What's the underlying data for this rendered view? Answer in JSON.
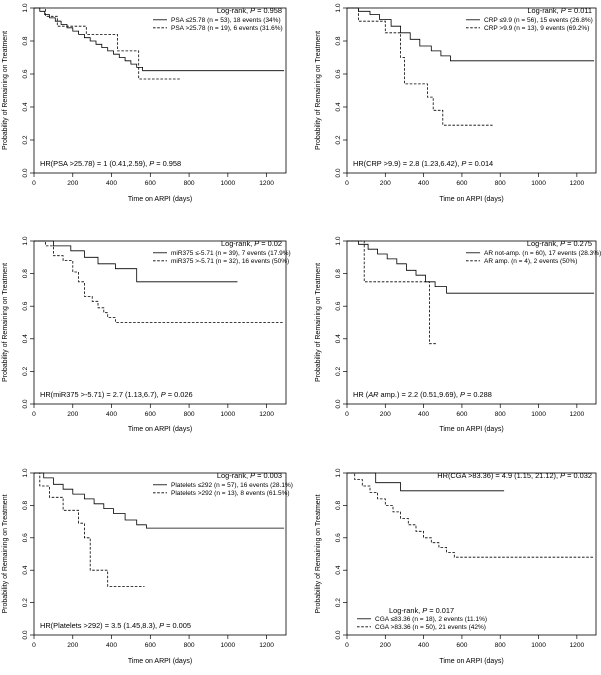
{
  "colors": {
    "line": "#000000",
    "background": "#ffffff"
  },
  "chart_data": [
    {
      "type": "line",
      "panel": "psa",
      "xlabel": "Time on ARPI (days)",
      "ylabel": "Probability of Remaining on Treatment",
      "xlim": [
        0,
        1300
      ],
      "ylim": [
        0,
        1
      ],
      "xticks": [
        "0",
        "200",
        "400",
        "600",
        "800",
        "1000",
        "1200"
      ],
      "yticks": [
        "0.0",
        "0.2",
        "0.4",
        "0.6",
        "0.8",
        "1.0"
      ],
      "top_text": {
        "label": "Log-rank, ",
        "p": "P",
        "value": " = 0.958"
      },
      "legend_position": "top-right",
      "bottom_text": {
        "label": "HR(PSA >25.78) = 1 (0.41,2.59), ",
        "p": "P",
        "value": " = 0.958"
      },
      "series": [
        {
          "name": "PSA ≤25.78 (n = 53), 18 events (34%)",
          "style": "solid",
          "x": [
            0,
            30,
            55,
            80,
            110,
            140,
            170,
            200,
            230,
            260,
            290,
            320,
            350,
            380,
            410,
            440,
            470,
            500,
            530,
            560,
            1290
          ],
          "y": [
            1.0,
            0.98,
            0.96,
            0.94,
            0.92,
            0.9,
            0.88,
            0.86,
            0.84,
            0.82,
            0.8,
            0.78,
            0.76,
            0.74,
            0.72,
            0.7,
            0.68,
            0.66,
            0.64,
            0.62,
            0.62
          ]
        },
        {
          "name": "PSA >25.78 (n = 19), 6 events (31.6%)",
          "style": "dashed",
          "x": [
            0,
            60,
            120,
            270,
            430,
            540,
            760
          ],
          "y": [
            1.0,
            0.95,
            0.89,
            0.84,
            0.74,
            0.57,
            0.57
          ]
        }
      ]
    },
    {
      "type": "line",
      "panel": "crp",
      "xlabel": "Time on ARPI (days)",
      "ylabel": "Probability of Remaining on Treatment",
      "xlim": [
        0,
        1300
      ],
      "ylim": [
        0,
        1
      ],
      "xticks": [
        "0",
        "200",
        "400",
        "600",
        "800",
        "1000",
        "1200"
      ],
      "yticks": [
        "0.0",
        "0.2",
        "0.4",
        "0.6",
        "0.8",
        "1.0"
      ],
      "top_text": {
        "label": "Log-rank, ",
        "p": "P",
        "value": " = 0.011"
      },
      "legend_position": "top-right",
      "bottom_text": {
        "label": "HR(CRP >9.9) = 2.8 (1.23,6.42), ",
        "p": "P",
        "value": " = 0.014"
      },
      "series": [
        {
          "name": "CRP ≤9.9 (n = 56), 15 events (26.8%)",
          "style": "solid",
          "x": [
            0,
            60,
            120,
            170,
            230,
            280,
            330,
            380,
            440,
            490,
            540,
            1290
          ],
          "y": [
            1.0,
            0.98,
            0.96,
            0.93,
            0.89,
            0.85,
            0.81,
            0.77,
            0.74,
            0.71,
            0.68,
            0.68
          ]
        },
        {
          "name": "CRP >9.9 (n = 13), 9 events (69.2%)",
          "style": "dashed",
          "x": [
            0,
            60,
            200,
            280,
            300,
            420,
            450,
            500,
            760
          ],
          "y": [
            1.0,
            0.92,
            0.85,
            0.7,
            0.54,
            0.46,
            0.38,
            0.29,
            0.29
          ]
        }
      ]
    },
    {
      "type": "line",
      "panel": "mir375",
      "xlabel": "Time on ARPI (days)",
      "ylabel": "Probability of Remaining on Treatment",
      "xlim": [
        0,
        1300
      ],
      "ylim": [
        0,
        1
      ],
      "xticks": [
        "0",
        "200",
        "400",
        "600",
        "800",
        "1000",
        "1200"
      ],
      "yticks": [
        "0.0",
        "0.2",
        "0.4",
        "0.6",
        "0.8",
        "1.0"
      ],
      "top_text": {
        "label": "Log-rank, ",
        "p": "P",
        "value": " = 0.02"
      },
      "legend_position": "top-right",
      "bottom_text": {
        "label": "HR(miR375 >-5.71) = 2.7 (1.13,6.7), ",
        "p": "P",
        "value": " = 0.026"
      },
      "series": [
        {
          "name": "miR375 ≤-5.71 (n = 39), 7 events (17.9%)",
          "style": "solid",
          "x": [
            0,
            100,
            190,
            260,
            330,
            420,
            530,
            1050
          ],
          "y": [
            1.0,
            0.97,
            0.94,
            0.9,
            0.86,
            0.83,
            0.75,
            0.75
          ]
        },
        {
          "name": "miR375 >-5.71 (n = 32), 16 events (50%)",
          "style": "dashed",
          "x": [
            0,
            60,
            100,
            150,
            200,
            230,
            260,
            300,
            330,
            360,
            380,
            420,
            560,
            1290
          ],
          "y": [
            1.0,
            0.97,
            0.91,
            0.88,
            0.81,
            0.75,
            0.66,
            0.63,
            0.59,
            0.56,
            0.53,
            0.5,
            0.5,
            0.5
          ]
        }
      ]
    },
    {
      "type": "line",
      "panel": "ar",
      "xlabel": "Time on ARPI (days)",
      "ylabel": "Probability of Remaining on Treatment",
      "xlim": [
        0,
        1300
      ],
      "ylim": [
        0,
        1
      ],
      "xticks": [
        "0",
        "200",
        "400",
        "600",
        "800",
        "1000",
        "1200"
      ],
      "yticks": [
        "0.0",
        "0.2",
        "0.4",
        "0.6",
        "0.8",
        "1.0"
      ],
      "top_text": {
        "label": "Log-rank, ",
        "p": "P",
        "value": " = 0.275"
      },
      "legend_position": "top-right",
      "bottom_text": {
        "prefix": "HR (",
        "gene": "AR",
        "label": " amp.) = 2.2 (0.51,9.69), ",
        "p": "P",
        "value": " = 0.288"
      },
      "series": [
        {
          "name": "AR not-amp. (n = 60), 17 events (28.3%)",
          "style": "solid",
          "x": [
            0,
            60,
            110,
            160,
            210,
            260,
            310,
            360,
            410,
            460,
            520,
            1290
          ],
          "y": [
            1.0,
            0.98,
            0.95,
            0.92,
            0.89,
            0.86,
            0.82,
            0.79,
            0.75,
            0.72,
            0.68,
            0.68
          ]
        },
        {
          "name": "AR amp. (n = 4), 2 events (50%)",
          "style": "dashed",
          "x": [
            0,
            80,
            90,
            420,
            430,
            470
          ],
          "y": [
            1.0,
            1.0,
            0.75,
            0.75,
            0.37,
            0.37
          ]
        }
      ]
    },
    {
      "type": "line",
      "panel": "platelets",
      "xlabel": "Time on ARPI (days)",
      "ylabel": "Probability of Remaining on Treatment",
      "xlim": [
        0,
        1300
      ],
      "ylim": [
        0,
        1
      ],
      "xticks": [
        "0",
        "200",
        "400",
        "600",
        "800",
        "1000",
        "1200"
      ],
      "yticks": [
        "0.0",
        "0.2",
        "0.4",
        "0.6",
        "0.8",
        "1.0"
      ],
      "top_text": {
        "label": "Log-rank, ",
        "p": "P",
        "value": " = 0.003"
      },
      "legend_position": "top-right",
      "bottom_text": {
        "label": "HR(Platelets >292) = 3.5 (1.45,8.3), ",
        "p": "P",
        "value": " = 0.005"
      },
      "series": [
        {
          "name": "Platelets ≤292 (n = 57), 16 events (28.1%)",
          "style": "solid",
          "x": [
            0,
            50,
            100,
            150,
            200,
            260,
            310,
            360,
            410,
            470,
            530,
            580,
            1290
          ],
          "y": [
            1.0,
            0.97,
            0.93,
            0.9,
            0.87,
            0.84,
            0.81,
            0.78,
            0.75,
            0.71,
            0.68,
            0.66,
            0.66
          ]
        },
        {
          "name": "Platelets >292 (n = 13), 8 events (61.5%)",
          "style": "dashed",
          "x": [
            0,
            30,
            80,
            150,
            230,
            260,
            290,
            380,
            570
          ],
          "y": [
            1.0,
            0.92,
            0.85,
            0.77,
            0.69,
            0.6,
            0.4,
            0.3,
            0.3
          ]
        }
      ]
    },
    {
      "type": "line",
      "panel": "cga",
      "xlabel": "Time on ARPI (days)",
      "ylabel": "Probability of Remaining on Treatment",
      "xlim": [
        0,
        1300
      ],
      "ylim": [
        0,
        1
      ],
      "xticks": [
        "0",
        "200",
        "400",
        "600",
        "800",
        "1000",
        "1200"
      ],
      "yticks": [
        "0.0",
        "0.2",
        "0.4",
        "0.6",
        "0.8",
        "1.0"
      ],
      "top_text": {
        "label": "HR(CGA >83.36) = 4.9 (1.15, 21.12), ",
        "p": "P",
        "value": " = 0.032"
      },
      "legend_position": "bottom-left",
      "bottom_text": {
        "label": "Log-rank, ",
        "p": "P",
        "value": " = 0.017"
      },
      "series": [
        {
          "name": "CGA ≤83.36 (n = 18), 2 events (11.1%)",
          "style": "solid",
          "x": [
            0,
            150,
            280,
            820
          ],
          "y": [
            1.0,
            0.94,
            0.89,
            0.89
          ]
        },
        {
          "name": "CGA >83.36 (n = 50), 21 events (42%)",
          "style": "dashed",
          "x": [
            0,
            40,
            80,
            120,
            160,
            200,
            240,
            280,
            320,
            360,
            400,
            440,
            480,
            520,
            560,
            1290
          ],
          "y": [
            1.0,
            0.96,
            0.92,
            0.88,
            0.84,
            0.8,
            0.76,
            0.72,
            0.68,
            0.64,
            0.6,
            0.57,
            0.54,
            0.51,
            0.48,
            0.48
          ]
        }
      ]
    }
  ]
}
